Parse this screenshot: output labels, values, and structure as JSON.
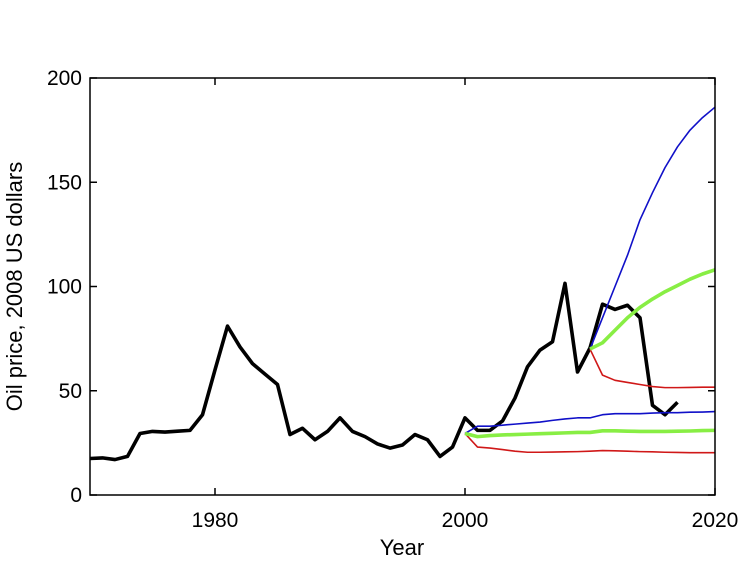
{
  "chart_data": {
    "type": "line",
    "title": "",
    "xlabel": "Year",
    "ylabel": "Oil price, 2008 US dollars",
    "xlim": [
      1970,
      2020
    ],
    "ylim": [
      0,
      200
    ],
    "xticks": [
      1980,
      2000,
      2020
    ],
    "yticks": [
      0,
      50,
      100,
      150,
      200
    ],
    "grid": false,
    "legend": "none",
    "series": [
      {
        "color": "#000000",
        "style": "thick",
        "x": [
          1970,
          1971,
          1972,
          1973,
          1974,
          1975,
          1976,
          1977,
          1978,
          1979,
          1980,
          1981,
          1982,
          1983,
          1984,
          1985,
          1986,
          1987,
          1988,
          1989,
          1990,
          1991,
          1992,
          1993,
          1994,
          1995,
          1996,
          1997,
          1998,
          1999,
          2000,
          2001,
          2002,
          2003,
          2004,
          2005,
          2006,
          2007,
          2008,
          2009,
          2010,
          2011,
          2012,
          2013,
          2014,
          2015,
          2016,
          2017
        ],
        "y": [
          17.5,
          17.8,
          17,
          18.5,
          29.5,
          30.5,
          30.2,
          30.6,
          31,
          38.5,
          60,
          81,
          71,
          63,
          58,
          53,
          29,
          32,
          26.5,
          30.5,
          37,
          30.5,
          28,
          24.5,
          22.5,
          24,
          29,
          26.5,
          18.5,
          23,
          37,
          31,
          31,
          35.5,
          46.5,
          61.5,
          69.5,
          73.5,
          101.5,
          59,
          70.5,
          91.5,
          89,
          91,
          85,
          43,
          38.5,
          44.5
        ]
      },
      {
        "color": "#1010c8",
        "style": "thin",
        "x": [
          2000,
          2001,
          2002,
          2003,
          2004,
          2005,
          2006,
          2007,
          2008,
          2009,
          2010,
          2011,
          2012,
          2013,
          2014,
          2015,
          2016,
          2017,
          2018,
          2019,
          2020
        ],
        "y": [
          29.5,
          33,
          33,
          33.5,
          34,
          34.5,
          35,
          35.8,
          36.5,
          37,
          37,
          38.5,
          39,
          39,
          39,
          39.3,
          39.5,
          39.5,
          39.7,
          39.8,
          40
        ]
      },
      {
        "color": "#d01818",
        "style": "thin",
        "x": [
          2000,
          2001,
          2002,
          2003,
          2004,
          2005,
          2006,
          2007,
          2008,
          2009,
          2010,
          2011,
          2012,
          2013,
          2014,
          2015,
          2016,
          2017,
          2018,
          2019,
          2020
        ],
        "y": [
          29.5,
          23,
          22.5,
          21.8,
          21,
          20.5,
          20.5,
          20.6,
          20.7,
          20.8,
          21,
          21.3,
          21.2,
          21,
          20.8,
          20.7,
          20.5,
          20.4,
          20.3,
          20.3,
          20.3
        ]
      },
      {
        "color": "#88ee44",
        "style": "thick",
        "x": [
          2000,
          2001,
          2002,
          2003,
          2004,
          2005,
          2006,
          2007,
          2008,
          2009,
          2010,
          2011,
          2012,
          2013,
          2014,
          2015,
          2016,
          2017,
          2018,
          2019,
          2020
        ],
        "y": [
          29.5,
          28,
          28.5,
          28.8,
          29,
          29.2,
          29.4,
          29.6,
          29.8,
          30,
          30,
          30.8,
          30.8,
          30.6,
          30.5,
          30.5,
          30.5,
          30.6,
          30.7,
          30.9,
          31
        ]
      },
      {
        "color": "#1010c8",
        "style": "thin",
        "x": [
          2010,
          2011,
          2012,
          2013,
          2014,
          2015,
          2016,
          2017,
          2018,
          2019,
          2020
        ],
        "y": [
          70,
          85,
          100,
          115,
          132,
          145,
          157,
          167,
          175,
          181,
          186
        ]
      },
      {
        "color": "#d01818",
        "style": "thin",
        "x": [
          2010,
          2011,
          2012,
          2013,
          2014,
          2015,
          2016,
          2017,
          2018,
          2019,
          2020
        ],
        "y": [
          70,
          57.5,
          55,
          54,
          53,
          52,
          51.5,
          51.5,
          51.6,
          51.7,
          51.7
        ]
      },
      {
        "color": "#88ee44",
        "style": "thick",
        "x": [
          2010,
          2011,
          2012,
          2013,
          2014,
          2015,
          2016,
          2017,
          2018,
          2019,
          2020
        ],
        "y": [
          70,
          73,
          79,
          85,
          90,
          94,
          97.5,
          100.5,
          103.5,
          106,
          108
        ]
      }
    ]
  }
}
